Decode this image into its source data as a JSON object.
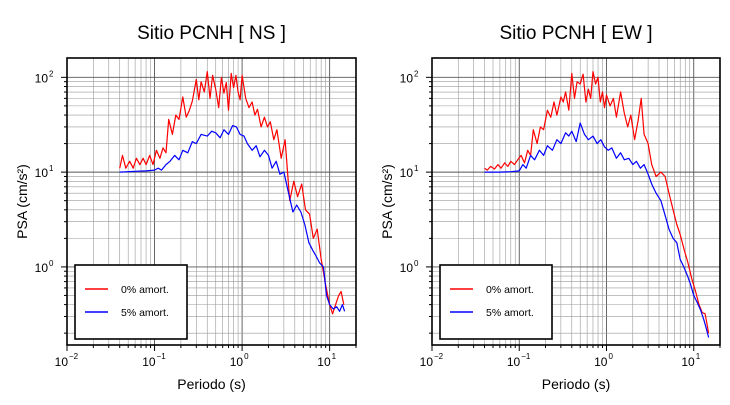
{
  "chart_data": [
    {
      "type": "line",
      "title": "Sitio PCNH [ NS ]",
      "xlabel": "Periodo (s)",
      "ylabel": "PSA (cm/s²)",
      "xscale": "log",
      "yscale": "log",
      "xlim": [
        0.01,
        20
      ],
      "ylim": [
        0.15,
        160
      ],
      "xticks": [
        {
          "value": 0.01,
          "base": "10",
          "exp": "−2"
        },
        {
          "value": 0.1,
          "base": "10",
          "exp": "−1"
        },
        {
          "value": 1,
          "base": "10",
          "exp": "0"
        },
        {
          "value": 10,
          "base": "10",
          "exp": "1"
        }
      ],
      "yticks": [
        {
          "value": 1,
          "base": "10",
          "exp": "0"
        },
        {
          "value": 10,
          "base": "10",
          "exp": "1"
        },
        {
          "value": 100,
          "base": "10",
          "exp": "2"
        }
      ],
      "grid": true,
      "legend_position": "bottom-left",
      "series": [
        {
          "name": "0% amort.",
          "color": "#ff0000",
          "points": [
            [
              0.04,
              11
            ],
            [
              0.043,
              15
            ],
            [
              0.047,
              11
            ],
            [
              0.052,
              13
            ],
            [
              0.057,
              11
            ],
            [
              0.062,
              14
            ],
            [
              0.068,
              12
            ],
            [
              0.074,
              14
            ],
            [
              0.08,
              12
            ],
            [
              0.088,
              15
            ],
            [
              0.096,
              12
            ],
            [
              0.105,
              17
            ],
            [
              0.115,
              14
            ],
            [
              0.125,
              18
            ],
            [
              0.135,
              16
            ],
            [
              0.145,
              36
            ],
            [
              0.16,
              25
            ],
            [
              0.175,
              40
            ],
            [
              0.19,
              36
            ],
            [
              0.21,
              62
            ],
            [
              0.23,
              38
            ],
            [
              0.25,
              45
            ],
            [
              0.27,
              56
            ],
            [
              0.3,
              95
            ],
            [
              0.32,
              58
            ],
            [
              0.34,
              90
            ],
            [
              0.37,
              70
            ],
            [
              0.4,
              115
            ],
            [
              0.43,
              60
            ],
            [
              0.46,
              105
            ],
            [
              0.5,
              75
            ],
            [
              0.54,
              48
            ],
            [
              0.58,
              100
            ],
            [
              0.62,
              68
            ],
            [
              0.66,
              88
            ],
            [
              0.7,
              45
            ],
            [
              0.75,
              110
            ],
            [
              0.8,
              78
            ],
            [
              0.85,
              105
            ],
            [
              0.9,
              70
            ],
            [
              0.95,
              58
            ],
            [
              1.0,
              105
            ],
            [
              1.1,
              60
            ],
            [
              1.2,
              48
            ],
            [
              1.3,
              55
            ],
            [
              1.4,
              40
            ],
            [
              1.5,
              46
            ],
            [
              1.65,
              30
            ],
            [
              1.8,
              38
            ],
            [
              1.95,
              30
            ],
            [
              2.1,
              34
            ],
            [
              2.3,
              22
            ],
            [
              2.5,
              28
            ],
            [
              2.8,
              14
            ],
            [
              3.1,
              22
            ],
            [
              3.5,
              5
            ],
            [
              3.9,
              8
            ],
            [
              4.3,
              5.5
            ],
            [
              4.8,
              7.5
            ],
            [
              5.3,
              4
            ],
            [
              5.9,
              3.6
            ],
            [
              6.5,
              2
            ],
            [
              7.2,
              2.5
            ],
            [
              8.0,
              1.2
            ],
            [
              9.0,
              0.65
            ],
            [
              10.0,
              0.4
            ],
            [
              10.8,
              0.32
            ],
            [
              11.7,
              0.4
            ],
            [
              12.7,
              0.5
            ],
            [
              13.5,
              0.55
            ],
            [
              14.5,
              0.4
            ]
          ]
        },
        {
          "name": "5% amort.",
          "color": "#0000ff",
          "points": [
            [
              0.04,
              10
            ],
            [
              0.06,
              10.2
            ],
            [
              0.08,
              10.3
            ],
            [
              0.1,
              10.5
            ],
            [
              0.11,
              11
            ],
            [
              0.12,
              10.5
            ],
            [
              0.135,
              12
            ],
            [
              0.15,
              13
            ],
            [
              0.17,
              15
            ],
            [
              0.19,
              13.5
            ],
            [
              0.21,
              17
            ],
            [
              0.24,
              16
            ],
            [
              0.27,
              21
            ],
            [
              0.3,
              20
            ],
            [
              0.34,
              25
            ],
            [
              0.4,
              24
            ],
            [
              0.45,
              27
            ],
            [
              0.5,
              26
            ],
            [
              0.56,
              23
            ],
            [
              0.62,
              28
            ],
            [
              0.7,
              25
            ],
            [
              0.78,
              31
            ],
            [
              0.86,
              30
            ],
            [
              0.95,
              25
            ],
            [
              1.05,
              24
            ],
            [
              1.15,
              20
            ],
            [
              1.3,
              17
            ],
            [
              1.45,
              19
            ],
            [
              1.6,
              14.5
            ],
            [
              1.8,
              17
            ],
            [
              2.0,
              15
            ],
            [
              2.2,
              11
            ],
            [
              2.45,
              13
            ],
            [
              2.7,
              9.5
            ],
            [
              3.0,
              10
            ],
            [
              3.4,
              6
            ],
            [
              3.8,
              3.8
            ],
            [
              4.2,
              4.5
            ],
            [
              4.7,
              3.8
            ],
            [
              5.2,
              2.8
            ],
            [
              5.8,
              1.8
            ],
            [
              6.4,
              1.5
            ],
            [
              7.0,
              1.3
            ],
            [
              7.7,
              1.1
            ],
            [
              8.5,
              1.0
            ],
            [
              9.2,
              0.5
            ],
            [
              10.0,
              0.4
            ],
            [
              11.0,
              0.36
            ],
            [
              12.0,
              0.38
            ],
            [
              13.0,
              0.34
            ],
            [
              14.0,
              0.4
            ],
            [
              14.8,
              0.34
            ]
          ]
        }
      ]
    },
    {
      "type": "line",
      "title": "Sitio PCNH [ EW ]",
      "xlabel": "Periodo (s)",
      "ylabel": "PSA (cm/s²)",
      "xscale": "log",
      "yscale": "log",
      "xlim": [
        0.01,
        20
      ],
      "ylim": [
        0.15,
        160
      ],
      "xticks": [
        {
          "value": 0.01,
          "base": "10",
          "exp": "−2"
        },
        {
          "value": 0.1,
          "base": "10",
          "exp": "−1"
        },
        {
          "value": 1,
          "base": "10",
          "exp": "0"
        },
        {
          "value": 10,
          "base": "10",
          "exp": "1"
        }
      ],
      "yticks": [
        {
          "value": 1,
          "base": "10",
          "exp": "0"
        },
        {
          "value": 10,
          "base": "10",
          "exp": "1"
        },
        {
          "value": 100,
          "base": "10",
          "exp": "2"
        }
      ],
      "grid": true,
      "legend_position": "bottom-left",
      "series": [
        {
          "name": "0% amort.",
          "color": "#ff0000",
          "points": [
            [
              0.04,
              11
            ],
            [
              0.043,
              10.5
            ],
            [
              0.047,
              11.5
            ],
            [
              0.052,
              10.8
            ],
            [
              0.057,
              12
            ],
            [
              0.062,
              11
            ],
            [
              0.068,
              12.5
            ],
            [
              0.074,
              11.5
            ],
            [
              0.08,
              13
            ],
            [
              0.088,
              12
            ],
            [
              0.096,
              13.5
            ],
            [
              0.105,
              15
            ],
            [
              0.115,
              12.5
            ],
            [
              0.125,
              17
            ],
            [
              0.135,
              15
            ],
            [
              0.145,
              28
            ],
            [
              0.16,
              20
            ],
            [
              0.175,
              30
            ],
            [
              0.19,
              28
            ],
            [
              0.21,
              45
            ],
            [
              0.23,
              38
            ],
            [
              0.25,
              55
            ],
            [
              0.27,
              40
            ],
            [
              0.3,
              62
            ],
            [
              0.32,
              55
            ],
            [
              0.34,
              70
            ],
            [
              0.37,
              45
            ],
            [
              0.4,
              110
            ],
            [
              0.43,
              60
            ],
            [
              0.46,
              90
            ],
            [
              0.5,
              85
            ],
            [
              0.54,
              108
            ],
            [
              0.58,
              55
            ],
            [
              0.62,
              75
            ],
            [
              0.66,
              60
            ],
            [
              0.7,
              115
            ],
            [
              0.75,
              85
            ],
            [
              0.8,
              100
            ],
            [
              0.85,
              55
            ],
            [
              0.9,
              70
            ],
            [
              0.95,
              48
            ],
            [
              1.0,
              65
            ],
            [
              1.1,
              50
            ],
            [
              1.2,
              60
            ],
            [
              1.3,
              38
            ],
            [
              1.45,
              70
            ],
            [
              1.6,
              42
            ],
            [
              1.75,
              30
            ],
            [
              1.9,
              40
            ],
            [
              2.1,
              22
            ],
            [
              2.3,
              35
            ],
            [
              2.5,
              60
            ],
            [
              2.7,
              25
            ],
            [
              3.0,
              20
            ],
            [
              3.3,
              12
            ],
            [
              3.7,
              9
            ],
            [
              4.2,
              10
            ],
            [
              4.7,
              9
            ],
            [
              5.2,
              6
            ],
            [
              5.8,
              4
            ],
            [
              6.4,
              2.8
            ],
            [
              7.0,
              2.2
            ],
            [
              7.8,
              1.5
            ],
            [
              8.6,
              1.1
            ],
            [
              9.5,
              0.75
            ],
            [
              10.5,
              0.55
            ],
            [
              11.5,
              0.4
            ],
            [
              12.5,
              0.33
            ],
            [
              13.5,
              0.32
            ],
            [
              14.2,
              0.25
            ],
            [
              14.8,
              0.2
            ]
          ]
        },
        {
          "name": "5% amort.",
          "color": "#0000ff",
          "points": [
            [
              0.04,
              10
            ],
            [
              0.06,
              10
            ],
            [
              0.08,
              10.1
            ],
            [
              0.1,
              10.3
            ],
            [
              0.11,
              12
            ],
            [
              0.12,
              11
            ],
            [
              0.135,
              15
            ],
            [
              0.15,
              13.5
            ],
            [
              0.17,
              17
            ],
            [
              0.19,
              15
            ],
            [
              0.21,
              19
            ],
            [
              0.24,
              17
            ],
            [
              0.27,
              22
            ],
            [
              0.3,
              20
            ],
            [
              0.34,
              26
            ],
            [
              0.37,
              24
            ],
            [
              0.4,
              27
            ],
            [
              0.45,
              21
            ],
            [
              0.5,
              33
            ],
            [
              0.56,
              25
            ],
            [
              0.62,
              22
            ],
            [
              0.7,
              24
            ],
            [
              0.78,
              20
            ],
            [
              0.86,
              22
            ],
            [
              0.95,
              18.5
            ],
            [
              1.05,
              17
            ],
            [
              1.15,
              18
            ],
            [
              1.3,
              14
            ],
            [
              1.45,
              16
            ],
            [
              1.6,
              13.5
            ],
            [
              1.8,
              14
            ],
            [
              2.0,
              12
            ],
            [
              2.2,
              13
            ],
            [
              2.45,
              11
            ],
            [
              2.7,
              12
            ],
            [
              3.0,
              9.5
            ],
            [
              3.3,
              7.5
            ],
            [
              3.7,
              6
            ],
            [
              4.2,
              5
            ],
            [
              4.7,
              3.5
            ],
            [
              5.2,
              2.5
            ],
            [
              5.8,
              2
            ],
            [
              6.4,
              1.8
            ],
            [
              7.0,
              1.2
            ],
            [
              7.7,
              1.0
            ],
            [
              8.5,
              0.8
            ],
            [
              9.2,
              0.65
            ],
            [
              10.0,
              0.5
            ],
            [
              11.0,
              0.42
            ],
            [
              12.0,
              0.35
            ],
            [
              13.0,
              0.28
            ],
            [
              14.0,
              0.22
            ],
            [
              14.8,
              0.18
            ]
          ]
        }
      ]
    }
  ]
}
